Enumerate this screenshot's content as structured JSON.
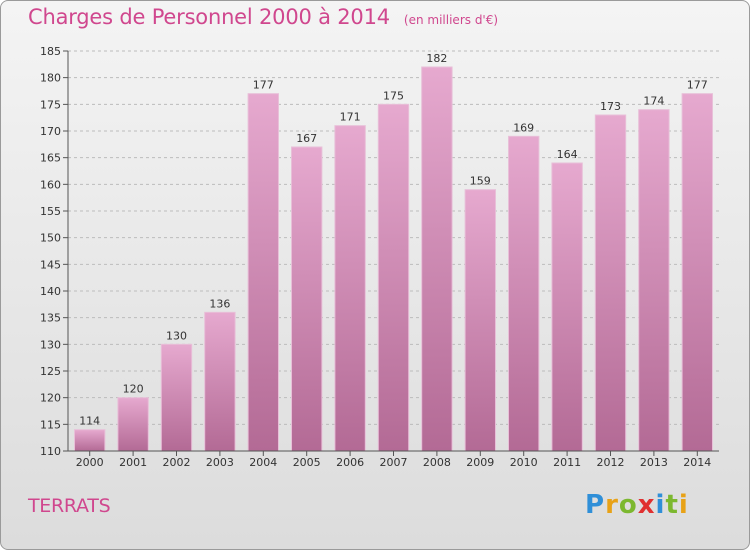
{
  "header": {
    "title": "Charges de Personnel 2000 à 2014",
    "unit": "(en milliers d'€)"
  },
  "footer": {
    "commune": "TERRATS",
    "brand_letters": [
      {
        "char": "P",
        "color": "#2f8fd8"
      },
      {
        "char": "r",
        "color": "#e8a217"
      },
      {
        "char": "o",
        "color": "#7cb82f"
      },
      {
        "char": "x",
        "color": "#e03030"
      },
      {
        "char": "i",
        "color": "#2f8fd8"
      },
      {
        "char": "t",
        "color": "#7cb82f"
      },
      {
        "char": "i",
        "color": "#e8a217"
      }
    ]
  },
  "colors": {
    "bar_top": "#e6a9cf",
    "bar_bottom": "#b36a95",
    "accent": "#d0478e"
  },
  "chart_data": {
    "type": "bar",
    "title": "Charges de Personnel 2000 à 2014",
    "subtitle": "(en milliers d'€)",
    "xlabel": "",
    "ylabel": "",
    "categories": [
      "2000",
      "2001",
      "2002",
      "2003",
      "2004",
      "2005",
      "2006",
      "2007",
      "2008",
      "2009",
      "2010",
      "2011",
      "2012",
      "2013",
      "2014"
    ],
    "values": [
      114,
      120,
      130,
      136,
      177,
      167,
      171,
      175,
      182,
      159,
      169,
      164,
      173,
      174,
      177
    ],
    "ylim": [
      110,
      185
    ],
    "yticks": [
      110,
      115,
      120,
      125,
      130,
      135,
      140,
      145,
      150,
      155,
      160,
      165,
      170,
      175,
      180,
      185
    ],
    "grid": true,
    "data_labels": true
  }
}
